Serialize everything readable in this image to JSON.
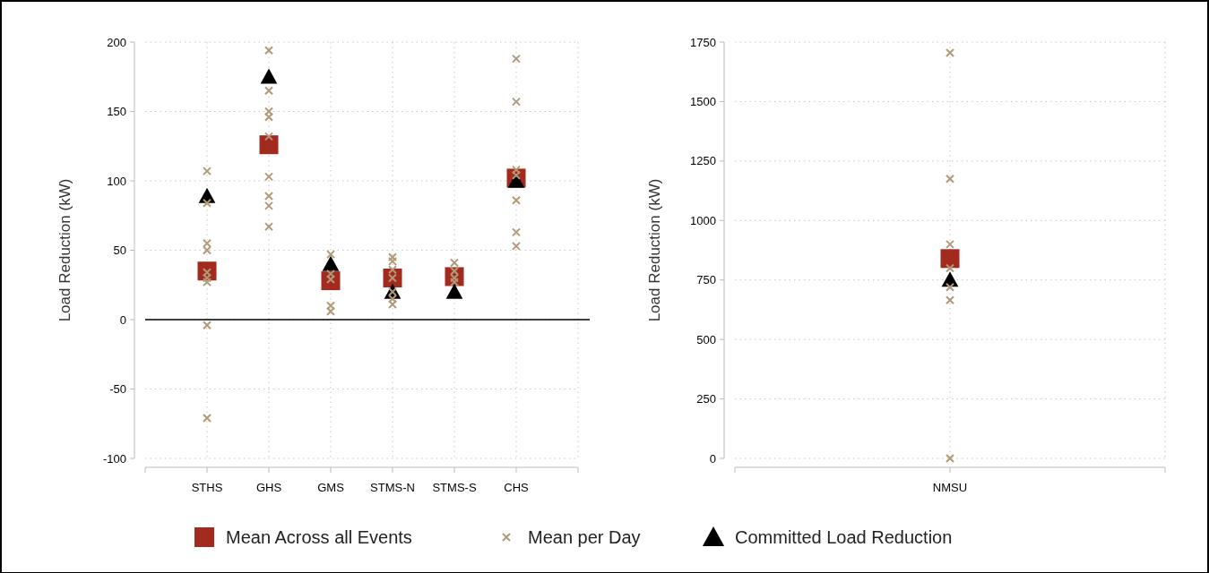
{
  "chart_data": [
    {
      "type": "scatter",
      "ylabel": "Load Reduction (kW)",
      "categories": [
        "STHS",
        "GHS",
        "GMS",
        "STMS-N",
        "STMS-S",
        "CHS"
      ],
      "ylim": [
        -100,
        200
      ],
      "yticks": [
        -100,
        -50,
        0,
        50,
        100,
        150,
        200
      ],
      "grid": true,
      "legend": "bottom",
      "ref_lines": [
        {
          "axis": "y",
          "value": 0,
          "color": "#000000"
        }
      ],
      "series": [
        {
          "name": "Mean per Day",
          "color": "#b09a78",
          "marker": "cross",
          "x": [
            "STHS",
            "STHS",
            "STHS",
            "STHS",
            "STHS",
            "STHS",
            "STHS",
            "STHS",
            "STHS",
            "GHS",
            "GHS",
            "GHS",
            "GHS",
            "GHS",
            "GHS",
            "GHS",
            "GHS",
            "GHS",
            "GMS",
            "GMS",
            "GMS",
            "GMS",
            "GMS",
            "STMS-N",
            "STMS-N",
            "STMS-N",
            "STMS-N",
            "STMS-N",
            "STMS-N",
            "STMS-N",
            "STMS-S",
            "STMS-S",
            "STMS-S",
            "STMS-S",
            "CHS",
            "CHS",
            "CHS",
            "CHS",
            "CHS",
            "CHS",
            "CHS"
          ],
          "values": [
            107,
            84,
            55,
            50,
            34,
            30,
            27,
            -4,
            -71,
            194,
            165,
            150,
            146,
            132,
            103,
            89,
            82,
            67,
            47,
            33,
            29,
            10,
            6,
            45,
            42,
            36,
            30,
            20,
            15,
            11,
            41,
            35,
            30,
            27,
            188,
            157,
            108,
            104,
            86,
            63,
            53
          ]
        },
        {
          "name": "Mean Across all Events",
          "color": "#a32a1f",
          "marker": "square",
          "values": [
            35,
            126,
            28,
            30,
            31,
            102
          ]
        },
        {
          "name": "Committed Load Reduction",
          "color": "#000000",
          "marker": "triangle",
          "values": [
            89,
            175,
            40,
            20,
            20,
            100
          ]
        }
      ]
    },
    {
      "type": "scatter",
      "ylabel": "Load Reduction (kW)",
      "categories": [
        "NMSU"
      ],
      "ylim": [
        0,
        1750
      ],
      "yticks": [
        0,
        250,
        500,
        750,
        1000,
        1250,
        1500,
        1750
      ],
      "grid": true,
      "series": [
        {
          "color": "#b09a78",
          "marker": "cross",
          "x": [
            "NMSU",
            "NMSU",
            "NMSU",
            "NMSU",
            "NMSU",
            "NMSU",
            "NMSU"
          ],
          "values": [
            1705,
            1175,
            900,
            800,
            720,
            665,
            0
          ]
        },
        {
          "color": "#a32a1f",
          "marker": "square",
          "values": [
            840
          ]
        },
        {
          "color": "#000000",
          "marker": "triangle",
          "values": [
            750
          ]
        }
      ]
    }
  ]
}
